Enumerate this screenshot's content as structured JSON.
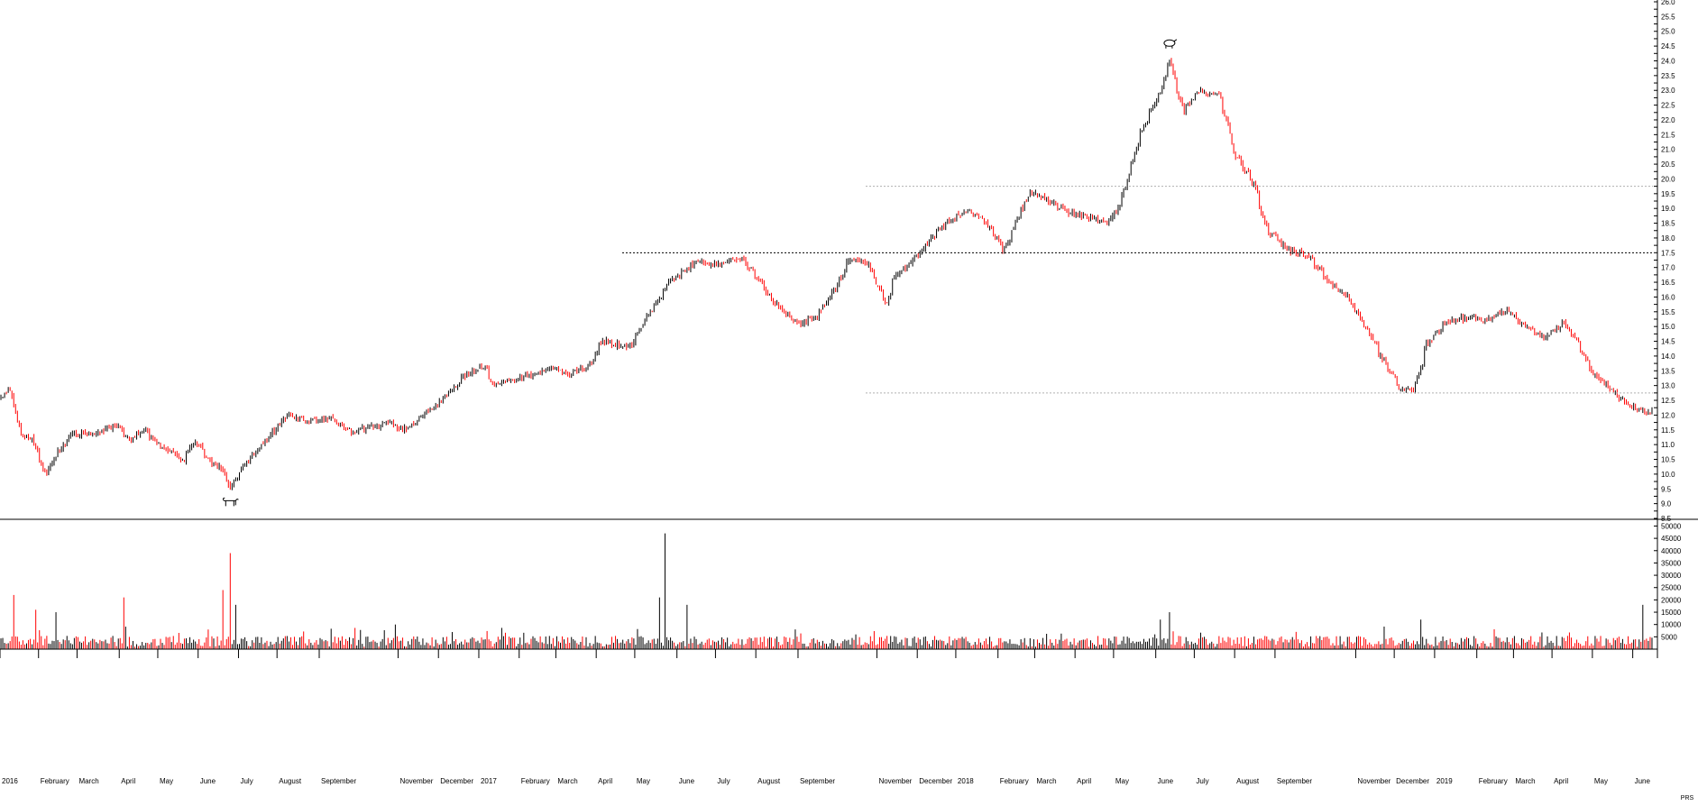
{
  "chart_data": [
    {
      "type": "candlestick",
      "panel": "price",
      "title": "",
      "xlabel": "",
      "ylabel": "",
      "ylim": [
        8.5,
        26.0
      ],
      "ytick_step": 0.5,
      "grid": false,
      "bullish_color": "#000000",
      "bearish_color": "#ff0000",
      "reference_lines": [
        {
          "value": 19.75,
          "style": "dotted-light"
        },
        {
          "value": 17.5,
          "style": "dotted-dark"
        },
        {
          "value": 12.75,
          "style": "dotted-light"
        }
      ],
      "annotations": [
        {
          "kind": "bull-icon",
          "date": "2016-06-24",
          "value": 9.1
        },
        {
          "kind": "bear-icon",
          "date": "2018-06-12",
          "value": 24.6
        }
      ],
      "series_anchors": [
        {
          "date": "2016-01-01",
          "close": 12.6
        },
        {
          "date": "2016-01-10",
          "close": 12.9
        },
        {
          "date": "2016-01-16",
          "close": 11.3
        },
        {
          "date": "2016-01-26",
          "close": 11.2
        },
        {
          "date": "2016-02-05",
          "close": 10.0
        },
        {
          "date": "2016-02-15",
          "close": 10.8
        },
        {
          "date": "2016-02-25",
          "close": 11.4
        },
        {
          "date": "2016-03-08",
          "close": 11.3
        },
        {
          "date": "2016-03-18",
          "close": 11.5
        },
        {
          "date": "2016-03-30",
          "close": 11.6
        },
        {
          "date": "2016-04-10",
          "close": 11.2
        },
        {
          "date": "2016-04-20",
          "close": 11.5
        },
        {
          "date": "2016-05-01",
          "close": 11.0
        },
        {
          "date": "2016-05-10",
          "close": 10.8
        },
        {
          "date": "2016-05-20",
          "close": 10.5
        },
        {
          "date": "2016-05-28",
          "close": 11.2
        },
        {
          "date": "2016-06-10",
          "close": 10.4
        },
        {
          "date": "2016-06-20",
          "close": 10.1
        },
        {
          "date": "2016-06-24",
          "close": 9.5
        },
        {
          "date": "2016-07-05",
          "close": 10.3
        },
        {
          "date": "2016-07-15",
          "close": 10.8
        },
        {
          "date": "2016-07-25",
          "close": 11.3
        },
        {
          "date": "2016-08-08",
          "close": 12.0
        },
        {
          "date": "2016-08-25",
          "close": 11.8
        },
        {
          "date": "2016-09-10",
          "close": 11.9
        },
        {
          "date": "2016-09-25",
          "close": 11.4
        },
        {
          "date": "2016-10-10",
          "close": 11.6
        },
        {
          "date": "2016-10-25",
          "close": 11.7
        },
        {
          "date": "2016-11-05",
          "close": 11.5
        },
        {
          "date": "2016-11-20",
          "close": 12.0
        },
        {
          "date": "2016-12-05",
          "close": 12.6
        },
        {
          "date": "2016-12-20",
          "close": 13.3
        },
        {
          "date": "2017-01-05",
          "close": 13.7
        },
        {
          "date": "2017-01-12",
          "close": 13.0
        },
        {
          "date": "2017-02-05",
          "close": 13.3
        },
        {
          "date": "2017-02-25",
          "close": 13.6
        },
        {
          "date": "2017-03-10",
          "close": 13.4
        },
        {
          "date": "2017-03-25",
          "close": 13.6
        },
        {
          "date": "2017-04-05",
          "close": 14.5
        },
        {
          "date": "2017-04-25",
          "close": 14.3
        },
        {
          "date": "2017-05-08",
          "close": 15.2
        },
        {
          "date": "2017-05-25",
          "close": 16.5
        },
        {
          "date": "2017-06-15",
          "close": 17.2
        },
        {
          "date": "2017-07-05",
          "close": 17.1
        },
        {
          "date": "2017-07-20",
          "close": 17.3
        },
        {
          "date": "2017-08-01",
          "close": 16.6
        },
        {
          "date": "2017-08-15",
          "close": 15.8
        },
        {
          "date": "2017-09-01",
          "close": 15.1
        },
        {
          "date": "2017-09-15",
          "close": 15.3
        },
        {
          "date": "2017-10-01",
          "close": 16.4
        },
        {
          "date": "2017-10-10",
          "close": 17.3
        },
        {
          "date": "2017-10-25",
          "close": 17.1
        },
        {
          "date": "2017-11-08",
          "close": 15.7
        },
        {
          "date": "2017-11-12",
          "close": 16.6
        },
        {
          "date": "2017-11-25",
          "close": 17.1
        },
        {
          "date": "2017-12-10",
          "close": 17.9
        },
        {
          "date": "2017-12-25",
          "close": 18.6
        },
        {
          "date": "2018-01-10",
          "close": 18.9
        },
        {
          "date": "2018-01-25",
          "close": 18.4
        },
        {
          "date": "2018-02-05",
          "close": 17.6
        },
        {
          "date": "2018-02-15",
          "close": 18.6
        },
        {
          "date": "2018-02-26",
          "close": 19.6
        },
        {
          "date": "2018-03-10",
          "close": 19.3
        },
        {
          "date": "2018-03-25",
          "close": 18.9
        },
        {
          "date": "2018-04-10",
          "close": 18.7
        },
        {
          "date": "2018-04-25",
          "close": 18.5
        },
        {
          "date": "2018-05-05",
          "close": 19.1
        },
        {
          "date": "2018-05-20",
          "close": 21.5
        },
        {
          "date": "2018-06-05",
          "close": 23.0
        },
        {
          "date": "2018-06-12",
          "close": 24.0
        },
        {
          "date": "2018-06-22",
          "close": 22.3
        },
        {
          "date": "2018-07-05",
          "close": 23.0
        },
        {
          "date": "2018-07-20",
          "close": 22.8
        },
        {
          "date": "2018-08-01",
          "close": 20.8
        },
        {
          "date": "2018-08-15",
          "close": 19.8
        },
        {
          "date": "2018-08-25",
          "close": 18.3
        },
        {
          "date": "2018-09-10",
          "close": 17.6
        },
        {
          "date": "2018-09-25",
          "close": 17.4
        },
        {
          "date": "2018-10-10",
          "close": 16.6
        },
        {
          "date": "2018-10-25",
          "close": 16.0
        },
        {
          "date": "2018-11-05",
          "close": 15.2
        },
        {
          "date": "2018-11-20",
          "close": 14.0
        },
        {
          "date": "2018-12-05",
          "close": 12.9
        },
        {
          "date": "2018-12-15",
          "close": 12.8
        },
        {
          "date": "2018-12-25",
          "close": 14.4
        },
        {
          "date": "2019-01-10",
          "close": 15.2
        },
        {
          "date": "2019-01-25",
          "close": 15.3
        },
        {
          "date": "2019-02-10",
          "close": 15.2
        },
        {
          "date": "2019-02-25",
          "close": 15.6
        },
        {
          "date": "2019-03-10",
          "close": 15.0
        },
        {
          "date": "2019-03-25",
          "close": 14.6
        },
        {
          "date": "2019-04-08",
          "close": 15.1
        },
        {
          "date": "2019-04-20",
          "close": 14.4
        },
        {
          "date": "2019-05-01",
          "close": 13.4
        },
        {
          "date": "2019-05-15",
          "close": 12.8
        },
        {
          "date": "2019-05-30",
          "close": 12.3
        },
        {
          "date": "2019-06-10",
          "close": 12.1
        }
      ],
      "volatility": 0.08,
      "seed": 20160101
    },
    {
      "type": "bar",
      "panel": "volume",
      "title": "",
      "xlabel": "",
      "ylabel": "",
      "ylim": [
        0,
        52000
      ],
      "ytick_step": 5000,
      "grid": false,
      "bullish_color": "#000000",
      "bearish_color": "#ff0000",
      "typical_value": 4000,
      "spikes": [
        {
          "date": "2016-01-12",
          "value": 22000
        },
        {
          "date": "2016-01-28",
          "value": 16000
        },
        {
          "date": "2016-02-12",
          "value": 15000
        },
        {
          "date": "2016-04-05",
          "value": 21000
        },
        {
          "date": "2016-06-20",
          "value": 24000
        },
        {
          "date": "2016-06-24",
          "value": 39000
        },
        {
          "date": "2016-06-29",
          "value": 18000
        },
        {
          "date": "2016-10-28",
          "value": 10000
        },
        {
          "date": "2017-05-18",
          "value": 21000
        },
        {
          "date": "2017-05-23",
          "value": 47000
        },
        {
          "date": "2017-06-08",
          "value": 18000
        },
        {
          "date": "2018-06-12",
          "value": 15000
        },
        {
          "date": "2018-06-05",
          "value": 12000
        },
        {
          "date": "2018-12-20",
          "value": 12000
        },
        {
          "date": "2019-06-07",
          "value": 18000
        }
      ],
      "seed": 98765
    }
  ],
  "x_axis": {
    "start": "2016-01-01",
    "end": "2019-06-14",
    "labels": [
      {
        "date": "2016-01-01",
        "text": "2016"
      },
      {
        "date": "2016-02-01",
        "text": "February"
      },
      {
        "date": "2016-03-01",
        "text": "March"
      },
      {
        "date": "2016-04-01",
        "text": "April"
      },
      {
        "date": "2016-05-01",
        "text": "May"
      },
      {
        "date": "2016-06-01",
        "text": "June"
      },
      {
        "date": "2016-07-01",
        "text": "July"
      },
      {
        "date": "2016-08-01",
        "text": "August"
      },
      {
        "date": "2016-09-01",
        "text": "September"
      },
      {
        "date": "2016-11-01",
        "text": "November"
      },
      {
        "date": "2016-12-01",
        "text": "December"
      },
      {
        "date": "2017-01-01",
        "text": "2017"
      },
      {
        "date": "2017-02-01",
        "text": "February"
      },
      {
        "date": "2017-03-01",
        "text": "March"
      },
      {
        "date": "2017-04-01",
        "text": "April"
      },
      {
        "date": "2017-05-01",
        "text": "May"
      },
      {
        "date": "2017-06-01",
        "text": "June"
      },
      {
        "date": "2017-07-01",
        "text": "July"
      },
      {
        "date": "2017-08-01",
        "text": "August"
      },
      {
        "date": "2017-09-01",
        "text": "September"
      },
      {
        "date": "2017-11-01",
        "text": "November"
      },
      {
        "date": "2017-12-01",
        "text": "December"
      },
      {
        "date": "2018-01-01",
        "text": "2018"
      },
      {
        "date": "2018-02-01",
        "text": "February"
      },
      {
        "date": "2018-03-01",
        "text": "March"
      },
      {
        "date": "2018-04-01",
        "text": "April"
      },
      {
        "date": "2018-05-01",
        "text": "May"
      },
      {
        "date": "2018-06-01",
        "text": "June"
      },
      {
        "date": "2018-07-01",
        "text": "July"
      },
      {
        "date": "2018-08-01",
        "text": "August"
      },
      {
        "date": "2018-09-01",
        "text": "September"
      },
      {
        "date": "2018-11-01",
        "text": "November"
      },
      {
        "date": "2018-12-01",
        "text": "December"
      },
      {
        "date": "2019-01-01",
        "text": "2019"
      },
      {
        "date": "2019-02-01",
        "text": "February"
      },
      {
        "date": "2019-03-01",
        "text": "March"
      },
      {
        "date": "2019-04-01",
        "text": "April"
      },
      {
        "date": "2019-05-01",
        "text": "May"
      },
      {
        "date": "2019-06-01",
        "text": "June"
      }
    ]
  },
  "corner_label": "PRS"
}
